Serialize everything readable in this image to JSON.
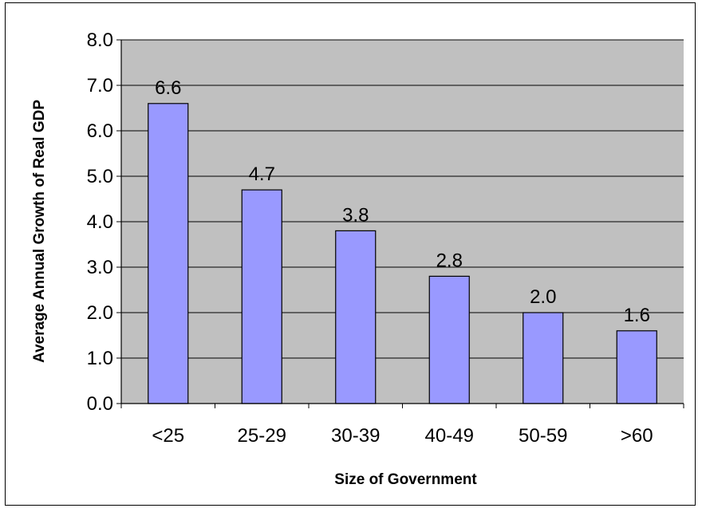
{
  "chart_data": {
    "type": "bar",
    "categories": [
      "<25",
      "25-29",
      "30-39",
      "40-49",
      "50-59",
      ">60"
    ],
    "values": [
      6.6,
      4.7,
      3.8,
      2.8,
      2.0,
      1.6
    ],
    "data_labels": [
      "6.6",
      "4.7",
      "3.8",
      "2.8",
      "2.0",
      "1.6"
    ],
    "xlabel": "Size of Government",
    "ylabel": "Average Annual Growth of Real GDP",
    "ylim": [
      0,
      8
    ],
    "yticks": [
      "0.0",
      "1.0",
      "2.0",
      "3.0",
      "4.0",
      "5.0",
      "6.0",
      "7.0",
      "8.0"
    ],
    "grid": true,
    "legend": "none",
    "colors": {
      "plot_background": "#c0c0c0",
      "bar_fill": "#9999ff",
      "bar_stroke": "#000000",
      "gridline": "#000000"
    }
  }
}
